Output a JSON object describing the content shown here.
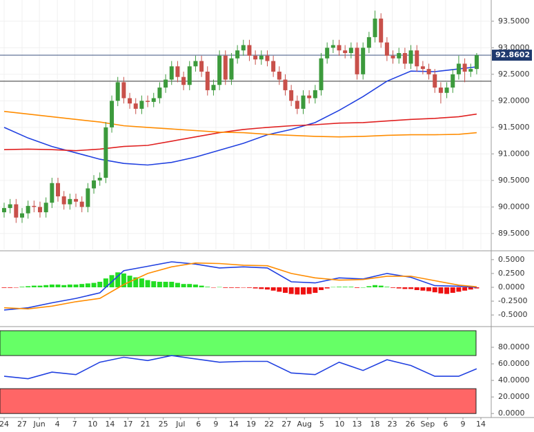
{
  "chart_data": [
    {
      "type": "candlestick",
      "xlim": [
        -0.69,
        81.43
      ],
      "ylim": [
        89.2,
        93.9
      ],
      "yticks": [
        {
          "value": 89.5,
          "label": "89.5000"
        },
        {
          "value": 90,
          "label": "90.0000"
        },
        {
          "value": 90.5,
          "label": "90.5000"
        },
        {
          "value": 91,
          "label": "91.0000"
        },
        {
          "value": 91.5,
          "label": "91.5000"
        },
        {
          "value": 92,
          "label": "92.0000"
        },
        {
          "value": 92.5,
          "label": "92.5000"
        },
        {
          "value": 93,
          "label": "93.0000"
        },
        {
          "value": 93.5,
          "label": "93.5000"
        }
      ],
      "xticks": [
        {
          "value": 0,
          "label": "24"
        },
        {
          "value": 3,
          "label": "27"
        },
        {
          "value": 5.9,
          "label": "Jun"
        },
        {
          "value": 8.9,
          "label": "4"
        },
        {
          "value": 11.8,
          "label": "7"
        },
        {
          "value": 14.8,
          "label": "10"
        },
        {
          "value": 17.7,
          "label": "14"
        },
        {
          "value": 20.7,
          "label": "17"
        },
        {
          "value": 23.6,
          "label": "21"
        },
        {
          "value": 26.6,
          "label": "25"
        },
        {
          "value": 29.5,
          "label": "Jul"
        },
        {
          "value": 32.5,
          "label": "6"
        },
        {
          "value": 35.4,
          "label": "9"
        },
        {
          "value": 38.4,
          "label": "14"
        },
        {
          "value": 41.3,
          "label": "19"
        },
        {
          "value": 44.3,
          "label": "22"
        },
        {
          "value": 47.2,
          "label": "27"
        },
        {
          "value": 50.2,
          "label": "Aug"
        },
        {
          "value": 53.1,
          "label": "5"
        },
        {
          "value": 56.1,
          "label": "10"
        },
        {
          "value": 59,
          "label": "13"
        },
        {
          "value": 62,
          "label": "18"
        },
        {
          "value": 64.9,
          "label": "23"
        },
        {
          "value": 67.9,
          "label": "26"
        },
        {
          "value": 70.8,
          "label": "Sep"
        },
        {
          "value": 73.8,
          "label": "6"
        },
        {
          "value": 76.7,
          "label": "9"
        },
        {
          "value": 79.7,
          "label": "14"
        }
      ],
      "grid": true,
      "colors": {
        "up": "#3c9a3c",
        "down": "#c8504a"
      },
      "open": [
        89.9,
        89.98,
        90.05,
        89.8,
        89.88,
        90.02,
        90.0,
        89.9,
        90.08,
        90.45,
        90.2,
        90.05,
        90.15,
        90.1,
        90.0,
        90.35,
        90.5,
        90.55,
        91.5,
        92.0,
        92.35,
        92.05,
        91.95,
        91.85,
        92.0,
        91.98,
        92.05,
        92.25,
        92.4,
        92.65,
        92.45,
        92.3,
        92.65,
        92.75,
        92.55,
        92.2,
        92.3,
        92.85,
        92.4,
        92.8,
        92.95,
        93.05,
        92.85,
        92.78,
        92.85,
        92.75,
        92.55,
        92.4,
        92.2,
        92.0,
        91.85,
        92.1,
        92.05,
        92.2,
        92.8,
        93.0,
        93.05,
        92.95,
        92.9,
        93.0,
        92.5,
        93.0,
        93.2,
        93.55,
        93.1,
        92.85,
        92.8,
        92.9,
        92.7,
        92.95,
        92.65,
        92.6,
        92.5,
        92.25,
        92.15,
        92.25,
        92.5,
        92.7,
        92.55,
        92.6
      ],
      "high": [
        90.08,
        90.15,
        90.15,
        89.98,
        90.12,
        90.12,
        90.1,
        90.18,
        90.55,
        90.55,
        90.3,
        90.25,
        90.25,
        90.2,
        90.45,
        90.6,
        90.65,
        91.6,
        92.1,
        92.45,
        92.45,
        92.15,
        92.05,
        92.1,
        92.1,
        92.15,
        92.35,
        92.5,
        92.75,
        92.75,
        92.55,
        92.75,
        92.85,
        92.85,
        92.65,
        92.4,
        92.95,
        92.95,
        92.9,
        93.05,
        93.15,
        93.15,
        92.95,
        92.95,
        92.95,
        92.85,
        92.65,
        92.5,
        92.3,
        92.1,
        92.2,
        92.2,
        92.3,
        92.9,
        93.1,
        93.15,
        93.15,
        93.05,
        93.1,
        93.1,
        93.1,
        93.3,
        93.7,
        93.65,
        93.2,
        92.95,
        93.0,
        93.0,
        93.05,
        93.05,
        92.75,
        92.7,
        92.6,
        92.35,
        92.35,
        92.6,
        92.85,
        92.8,
        92.7,
        92.9
      ],
      "low": [
        89.8,
        89.88,
        89.7,
        89.7,
        89.78,
        89.9,
        89.8,
        89.8,
        89.98,
        90.1,
        89.95,
        89.95,
        90.0,
        89.9,
        89.9,
        90.25,
        90.4,
        90.45,
        91.4,
        91.9,
        91.95,
        91.85,
        91.75,
        91.75,
        91.88,
        91.88,
        91.95,
        92.15,
        92.3,
        92.35,
        92.2,
        92.2,
        92.55,
        92.45,
        92.1,
        92.1,
        92.2,
        92.3,
        92.3,
        92.7,
        92.85,
        92.75,
        92.68,
        92.68,
        92.65,
        92.45,
        92.3,
        92.1,
        91.9,
        91.75,
        91.75,
        91.95,
        91.95,
        92.1,
        92.7,
        92.9,
        92.85,
        92.8,
        92.8,
        92.4,
        92.4,
        92.9,
        93.1,
        93.0,
        92.75,
        92.7,
        92.7,
        92.6,
        92.6,
        92.55,
        92.5,
        92.4,
        92.15,
        91.95,
        92.05,
        92.15,
        92.4,
        92.35,
        92.45,
        92.5
      ],
      "close": [
        89.98,
        90.05,
        89.8,
        89.88,
        90.02,
        90.0,
        89.9,
        90.08,
        90.45,
        90.2,
        90.05,
        90.15,
        90.1,
        90.0,
        90.35,
        90.5,
        90.55,
        91.5,
        92.0,
        92.35,
        92.05,
        91.95,
        91.85,
        92.0,
        91.98,
        92.05,
        92.25,
        92.4,
        92.65,
        92.45,
        92.3,
        92.65,
        92.75,
        92.55,
        92.2,
        92.3,
        92.85,
        92.4,
        92.8,
        92.95,
        93.05,
        92.85,
        92.78,
        92.85,
        92.75,
        92.55,
        92.4,
        92.2,
        92.0,
        91.85,
        92.1,
        92.05,
        92.2,
        92.8,
        93.0,
        93.05,
        92.95,
        92.9,
        93.0,
        92.5,
        93.0,
        93.2,
        93.55,
        93.1,
        92.85,
        92.8,
        92.9,
        92.7,
        92.95,
        92.65,
        92.6,
        92.5,
        92.25,
        92.15,
        92.25,
        92.5,
        92.7,
        92.55,
        92.6,
        92.86
      ],
      "series": [
        {
          "color": "#2040e0",
          "x": [
            0,
            4,
            8,
            12,
            16,
            20,
            24,
            28,
            32,
            36,
            40,
            44,
            48,
            52,
            56,
            60,
            64,
            68,
            72,
            76,
            79
          ],
          "values": [
            91.5,
            91.3,
            91.14,
            91.02,
            90.9,
            90.82,
            90.79,
            90.84,
            90.94,
            91.07,
            91.2,
            91.36,
            91.46,
            91.59,
            91.82,
            92.08,
            92.37,
            92.56,
            92.55,
            92.6,
            92.64
          ]
        },
        {
          "color": "#e02020",
          "x": [
            0,
            4,
            8,
            12,
            16,
            20,
            24,
            28,
            32,
            36,
            40,
            44,
            48,
            52,
            56,
            60,
            64,
            68,
            72,
            76,
            79
          ],
          "values": [
            91.08,
            91.09,
            91.08,
            91.06,
            91.09,
            91.14,
            91.16,
            91.24,
            91.32,
            91.4,
            91.46,
            91.5,
            91.53,
            91.55,
            91.58,
            91.59,
            91.62,
            91.65,
            91.67,
            91.7,
            91.75
          ]
        },
        {
          "color": "#ff8c00",
          "x": [
            0,
            4,
            8,
            12,
            16,
            20,
            24,
            28,
            32,
            36,
            40,
            44,
            48,
            52,
            56,
            60,
            64,
            68,
            72,
            76,
            79
          ],
          "values": [
            91.8,
            91.75,
            91.7,
            91.65,
            91.6,
            91.53,
            91.5,
            91.47,
            91.44,
            91.41,
            91.4,
            91.37,
            91.35,
            91.33,
            91.32,
            91.33,
            91.35,
            91.36,
            91.36,
            91.37,
            91.4
          ]
        }
      ],
      "support": 92.37,
      "last": 92.8602,
      "last_color": "#1f3a6e"
    },
    {
      "type": "macd",
      "ylim": [
        -0.66,
        0.61
      ],
      "yticks": [
        {
          "value": -0.5,
          "label": "-0.5000"
        },
        {
          "value": -0.25,
          "label": "-0.2500"
        },
        {
          "value": 0,
          "label": "0.0000"
        },
        {
          "value": 0.25,
          "label": "0.2500"
        },
        {
          "value": 0.5,
          "label": "0.5000"
        }
      ],
      "colors": {
        "up": "#22dd22",
        "down": "#ee1111"
      },
      "histogram": [
        -0.01,
        -0.01,
        -0.005,
        0.01,
        0.02,
        0.03,
        0.03,
        0.04,
        0.05,
        0.05,
        0.04,
        0.05,
        0.05,
        0.06,
        0.07,
        0.08,
        0.1,
        0.16,
        0.22,
        0.27,
        0.25,
        0.21,
        0.18,
        0.16,
        0.13,
        0.11,
        0.1,
        0.1,
        0.1,
        0.08,
        0.06,
        0.06,
        0.05,
        0.03,
        0.01,
        -0.005,
        0.005,
        -0.01,
        -0.01,
        -0.01,
        -0.005,
        -0.01,
        -0.02,
        -0.03,
        -0.04,
        -0.06,
        -0.08,
        -0.1,
        -0.12,
        -0.13,
        -0.13,
        -0.12,
        -0.1,
        -0.05,
        -0.02,
        0.005,
        0.01,
        0.01,
        0.01,
        -0.01,
        0,
        0.02,
        0.04,
        0.03,
        0.01,
        -0.01,
        -0.02,
        -0.03,
        -0.03,
        -0.05,
        -0.06,
        -0.07,
        -0.09,
        -0.11,
        -0.12,
        -0.1,
        -0.08,
        -0.06,
        -0.04,
        -0.02
      ],
      "series": [
        {
          "color": "#2040e0",
          "x": [
            0,
            4,
            8,
            12,
            16,
            20,
            24,
            28,
            32,
            36,
            40,
            44,
            48,
            52,
            56,
            60,
            64,
            68,
            72,
            76,
            79
          ],
          "values": [
            -0.41,
            -0.37,
            -0.28,
            -0.2,
            -0.1,
            0.3,
            0.38,
            0.46,
            0.42,
            0.35,
            0.37,
            0.35,
            0.1,
            0.08,
            0.17,
            0.15,
            0.25,
            0.18,
            0.03,
            0.02,
            0
          ]
        },
        {
          "color": "#ff8c00",
          "x": [
            0,
            4,
            8,
            12,
            16,
            20,
            24,
            28,
            32,
            36,
            40,
            44,
            48,
            52,
            56,
            60,
            64,
            68,
            72,
            76,
            79
          ],
          "values": [
            -0.37,
            -0.39,
            -0.34,
            -0.26,
            -0.2,
            0.05,
            0.25,
            0.37,
            0.44,
            0.43,
            0.4,
            0.39,
            0.25,
            0.17,
            0.13,
            0.14,
            0.2,
            0.2,
            0.12,
            0.04,
            0.01
          ]
        }
      ]
    },
    {
      "type": "line",
      "ylim": [
        -4,
        100
      ],
      "yticks": [
        {
          "value": 0,
          "label": "0.0000"
        },
        {
          "value": 20,
          "label": "20.0000"
        },
        {
          "value": 40,
          "label": "40.0000"
        },
        {
          "value": 60,
          "label": "60.0000"
        },
        {
          "value": 80,
          "label": "80.0000"
        }
      ],
      "zones": [
        {
          "range": [
            70,
            100
          ],
          "color": "#66ff66"
        },
        {
          "range": [
            0,
            30
          ],
          "color": "#ff6666"
        }
      ],
      "series": [
        {
          "color": "#2040e0",
          "x": [
            0,
            4,
            8,
            12,
            16,
            20,
            24,
            28,
            32,
            36,
            40,
            44,
            48,
            52,
            56,
            60,
            64,
            68,
            72,
            76,
            79
          ],
          "values": [
            45,
            42,
            50,
            47,
            62,
            68,
            64,
            70,
            66,
            62,
            63,
            63,
            49,
            47,
            62,
            52,
            65,
            58,
            45,
            45,
            54
          ]
        }
      ]
    }
  ]
}
